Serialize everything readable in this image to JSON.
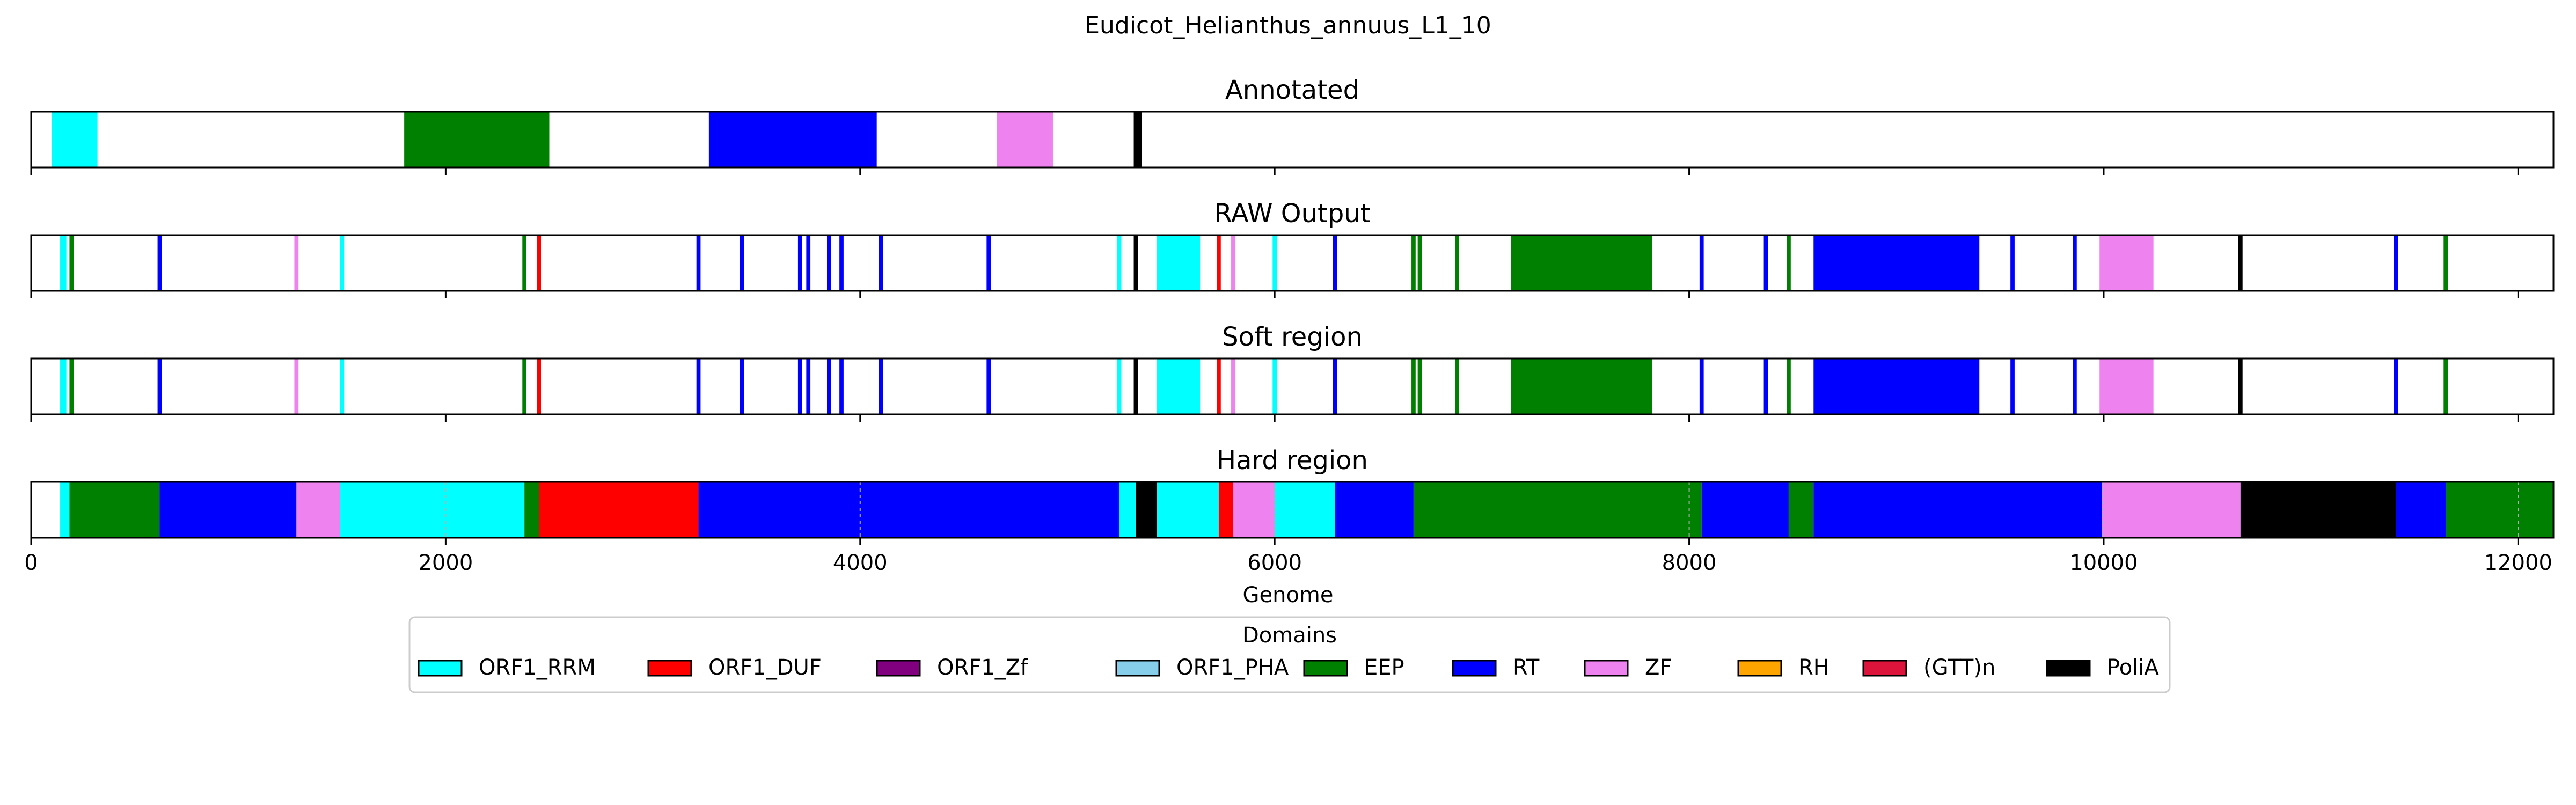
{
  "figure_title": "Eudicot_Helianthus_annuus_L1_10",
  "chart_data": {
    "type": "broken_barh",
    "xlabel": "Genome",
    "xlim": [
      0,
      12170
    ],
    "xticks": [
      0,
      2000,
      4000,
      6000,
      8000,
      10000,
      12000
    ],
    "xtick_labels": [
      "0",
      "2000",
      "4000",
      "6000",
      "8000",
      "10000",
      "12000"
    ],
    "legend": {
      "title": "Domains",
      "placement": "below",
      "entries": [
        {
          "label": "ORF1_RRM",
          "color": "#00FFFF"
        },
        {
          "label": "ORF1_DUF",
          "color": "#FF0000"
        },
        {
          "label": "ORF1_Zf",
          "color": "#800080"
        },
        {
          "label": "ORF1_PHA",
          "color": "#87CEEB"
        },
        {
          "label": "EEP",
          "color": "#008000"
        },
        {
          "label": "RT",
          "color": "#0000FF"
        },
        {
          "label": "ZF",
          "color": "#EE82EE"
        },
        {
          "label": "RH",
          "color": "#FFA500"
        },
        {
          "label": "(GTT)n",
          "color": "#DC143C"
        },
        {
          "label": "PoliA",
          "color": "#000000"
        }
      ]
    },
    "tracks": [
      {
        "title": "Annotated",
        "grid": false,
        "segments": [
          {
            "start": 100,
            "end": 320,
            "domain": "ORF1_RRM"
          },
          {
            "start": 1800,
            "end": 2500,
            "domain": "EEP"
          },
          {
            "start": 3270,
            "end": 4080,
            "domain": "RT"
          },
          {
            "start": 4660,
            "end": 4930,
            "domain": "ZF"
          },
          {
            "start": 5320,
            "end": 5360,
            "domain": "PoliA"
          }
        ]
      },
      {
        "title": "RAW Output",
        "grid": false,
        "segments": [
          {
            "start": 140,
            "end": 170,
            "domain": "ORF1_RRM"
          },
          {
            "start": 185,
            "end": 205,
            "domain": "EEP"
          },
          {
            "start": 610,
            "end": 630,
            "domain": "RT"
          },
          {
            "start": 1270,
            "end": 1290,
            "domain": "ZF"
          },
          {
            "start": 1490,
            "end": 1510,
            "domain": "ORF1_RRM"
          },
          {
            "start": 2370,
            "end": 2390,
            "domain": "EEP"
          },
          {
            "start": 2440,
            "end": 2460,
            "domain": "ORF1_DUF"
          },
          {
            "start": 3210,
            "end": 3230,
            "domain": "RT"
          },
          {
            "start": 3420,
            "end": 3440,
            "domain": "RT"
          },
          {
            "start": 3700,
            "end": 3720,
            "domain": "RT"
          },
          {
            "start": 3740,
            "end": 3760,
            "domain": "RT"
          },
          {
            "start": 3840,
            "end": 3860,
            "domain": "RT"
          },
          {
            "start": 3900,
            "end": 3920,
            "domain": "RT"
          },
          {
            "start": 4090,
            "end": 4110,
            "domain": "RT"
          },
          {
            "start": 4610,
            "end": 4630,
            "domain": "RT"
          },
          {
            "start": 5240,
            "end": 5260,
            "domain": "ORF1_RRM"
          },
          {
            "start": 5320,
            "end": 5340,
            "domain": "PoliA"
          },
          {
            "start": 5430,
            "end": 5640,
            "domain": "ORF1_RRM"
          },
          {
            "start": 5720,
            "end": 5740,
            "domain": "ORF1_DUF"
          },
          {
            "start": 5790,
            "end": 5810,
            "domain": "ZF"
          },
          {
            "start": 5990,
            "end": 6010,
            "domain": "ORF1_RRM"
          },
          {
            "start": 6280,
            "end": 6300,
            "domain": "RT"
          },
          {
            "start": 6660,
            "end": 6680,
            "domain": "EEP"
          },
          {
            "start": 6690,
            "end": 6710,
            "domain": "EEP"
          },
          {
            "start": 6870,
            "end": 6890,
            "domain": "EEP"
          },
          {
            "start": 7140,
            "end": 7820,
            "domain": "EEP"
          },
          {
            "start": 8050,
            "end": 8070,
            "domain": "RT"
          },
          {
            "start": 8360,
            "end": 8380,
            "domain": "RT"
          },
          {
            "start": 8470,
            "end": 8490,
            "domain": "EEP"
          },
          {
            "start": 8600,
            "end": 9400,
            "domain": "RT"
          },
          {
            "start": 9550,
            "end": 9570,
            "domain": "RT"
          },
          {
            "start": 9850,
            "end": 9870,
            "domain": "RT"
          },
          {
            "start": 9980,
            "end": 10240,
            "domain": "ZF"
          },
          {
            "start": 10650,
            "end": 10670,
            "domain": "PoliA"
          },
          {
            "start": 11400,
            "end": 11420,
            "domain": "RT"
          },
          {
            "start": 11640,
            "end": 11660,
            "domain": "EEP"
          }
        ]
      },
      {
        "title": "Soft region",
        "grid": false,
        "segments": [
          {
            "start": 140,
            "end": 170,
            "domain": "ORF1_RRM"
          },
          {
            "start": 185,
            "end": 205,
            "domain": "EEP"
          },
          {
            "start": 610,
            "end": 630,
            "domain": "RT"
          },
          {
            "start": 1270,
            "end": 1290,
            "domain": "ZF"
          },
          {
            "start": 1490,
            "end": 1510,
            "domain": "ORF1_RRM"
          },
          {
            "start": 2370,
            "end": 2390,
            "domain": "EEP"
          },
          {
            "start": 2440,
            "end": 2460,
            "domain": "ORF1_DUF"
          },
          {
            "start": 3210,
            "end": 3230,
            "domain": "RT"
          },
          {
            "start": 3420,
            "end": 3440,
            "domain": "RT"
          },
          {
            "start": 3700,
            "end": 3720,
            "domain": "RT"
          },
          {
            "start": 3740,
            "end": 3760,
            "domain": "RT"
          },
          {
            "start": 3840,
            "end": 3860,
            "domain": "RT"
          },
          {
            "start": 3900,
            "end": 3920,
            "domain": "RT"
          },
          {
            "start": 4090,
            "end": 4110,
            "domain": "RT"
          },
          {
            "start": 4610,
            "end": 4630,
            "domain": "RT"
          },
          {
            "start": 5240,
            "end": 5260,
            "domain": "ORF1_RRM"
          },
          {
            "start": 5320,
            "end": 5340,
            "domain": "PoliA"
          },
          {
            "start": 5430,
            "end": 5640,
            "domain": "ORF1_RRM"
          },
          {
            "start": 5720,
            "end": 5740,
            "domain": "ORF1_DUF"
          },
          {
            "start": 5790,
            "end": 5810,
            "domain": "ZF"
          },
          {
            "start": 5990,
            "end": 6010,
            "domain": "ORF1_RRM"
          },
          {
            "start": 6280,
            "end": 6300,
            "domain": "RT"
          },
          {
            "start": 6660,
            "end": 6680,
            "domain": "EEP"
          },
          {
            "start": 6690,
            "end": 6710,
            "domain": "EEP"
          },
          {
            "start": 6870,
            "end": 6890,
            "domain": "EEP"
          },
          {
            "start": 7140,
            "end": 7820,
            "domain": "EEP"
          },
          {
            "start": 8050,
            "end": 8070,
            "domain": "RT"
          },
          {
            "start": 8360,
            "end": 8380,
            "domain": "RT"
          },
          {
            "start": 8470,
            "end": 8490,
            "domain": "EEP"
          },
          {
            "start": 8600,
            "end": 9400,
            "domain": "RT"
          },
          {
            "start": 9550,
            "end": 9570,
            "domain": "RT"
          },
          {
            "start": 9850,
            "end": 9870,
            "domain": "RT"
          },
          {
            "start": 9980,
            "end": 10240,
            "domain": "ZF"
          },
          {
            "start": 10650,
            "end": 10670,
            "domain": "PoliA"
          },
          {
            "start": 11400,
            "end": 11420,
            "domain": "RT"
          },
          {
            "start": 11640,
            "end": 11660,
            "domain": "EEP"
          }
        ]
      },
      {
        "title": "Hard region",
        "grid": true,
        "segments": [
          {
            "start": 140,
            "end": 185,
            "domain": "ORF1_RRM"
          },
          {
            "start": 185,
            "end": 620,
            "domain": "EEP"
          },
          {
            "start": 620,
            "end": 1280,
            "domain": "RT"
          },
          {
            "start": 1280,
            "end": 1490,
            "domain": "ZF"
          },
          {
            "start": 1490,
            "end": 2380,
            "domain": "ORF1_RRM"
          },
          {
            "start": 2380,
            "end": 2450,
            "domain": "EEP"
          },
          {
            "start": 2450,
            "end": 3220,
            "domain": "ORF1_DUF"
          },
          {
            "start": 3220,
            "end": 5250,
            "domain": "RT"
          },
          {
            "start": 5250,
            "end": 5330,
            "domain": "ORF1_RRM"
          },
          {
            "start": 5330,
            "end": 5430,
            "domain": "PoliA"
          },
          {
            "start": 5430,
            "end": 5730,
            "domain": "ORF1_RRM"
          },
          {
            "start": 5730,
            "end": 5800,
            "domain": "ORF1_DUF"
          },
          {
            "start": 5800,
            "end": 6000,
            "domain": "ZF"
          },
          {
            "start": 6000,
            "end": 6290,
            "domain": "ORF1_RRM"
          },
          {
            "start": 6290,
            "end": 6670,
            "domain": "RT"
          },
          {
            "start": 6670,
            "end": 8060,
            "domain": "EEP"
          },
          {
            "start": 8060,
            "end": 8480,
            "domain": "RT"
          },
          {
            "start": 8480,
            "end": 8600,
            "domain": "EEP"
          },
          {
            "start": 8600,
            "end": 9990,
            "domain": "RT"
          },
          {
            "start": 9990,
            "end": 10660,
            "domain": "ZF"
          },
          {
            "start": 10660,
            "end": 11410,
            "domain": "PoliA"
          },
          {
            "start": 11410,
            "end": 11650,
            "domain": "RT"
          },
          {
            "start": 11650,
            "end": 12170,
            "domain": "EEP"
          }
        ]
      }
    ]
  }
}
